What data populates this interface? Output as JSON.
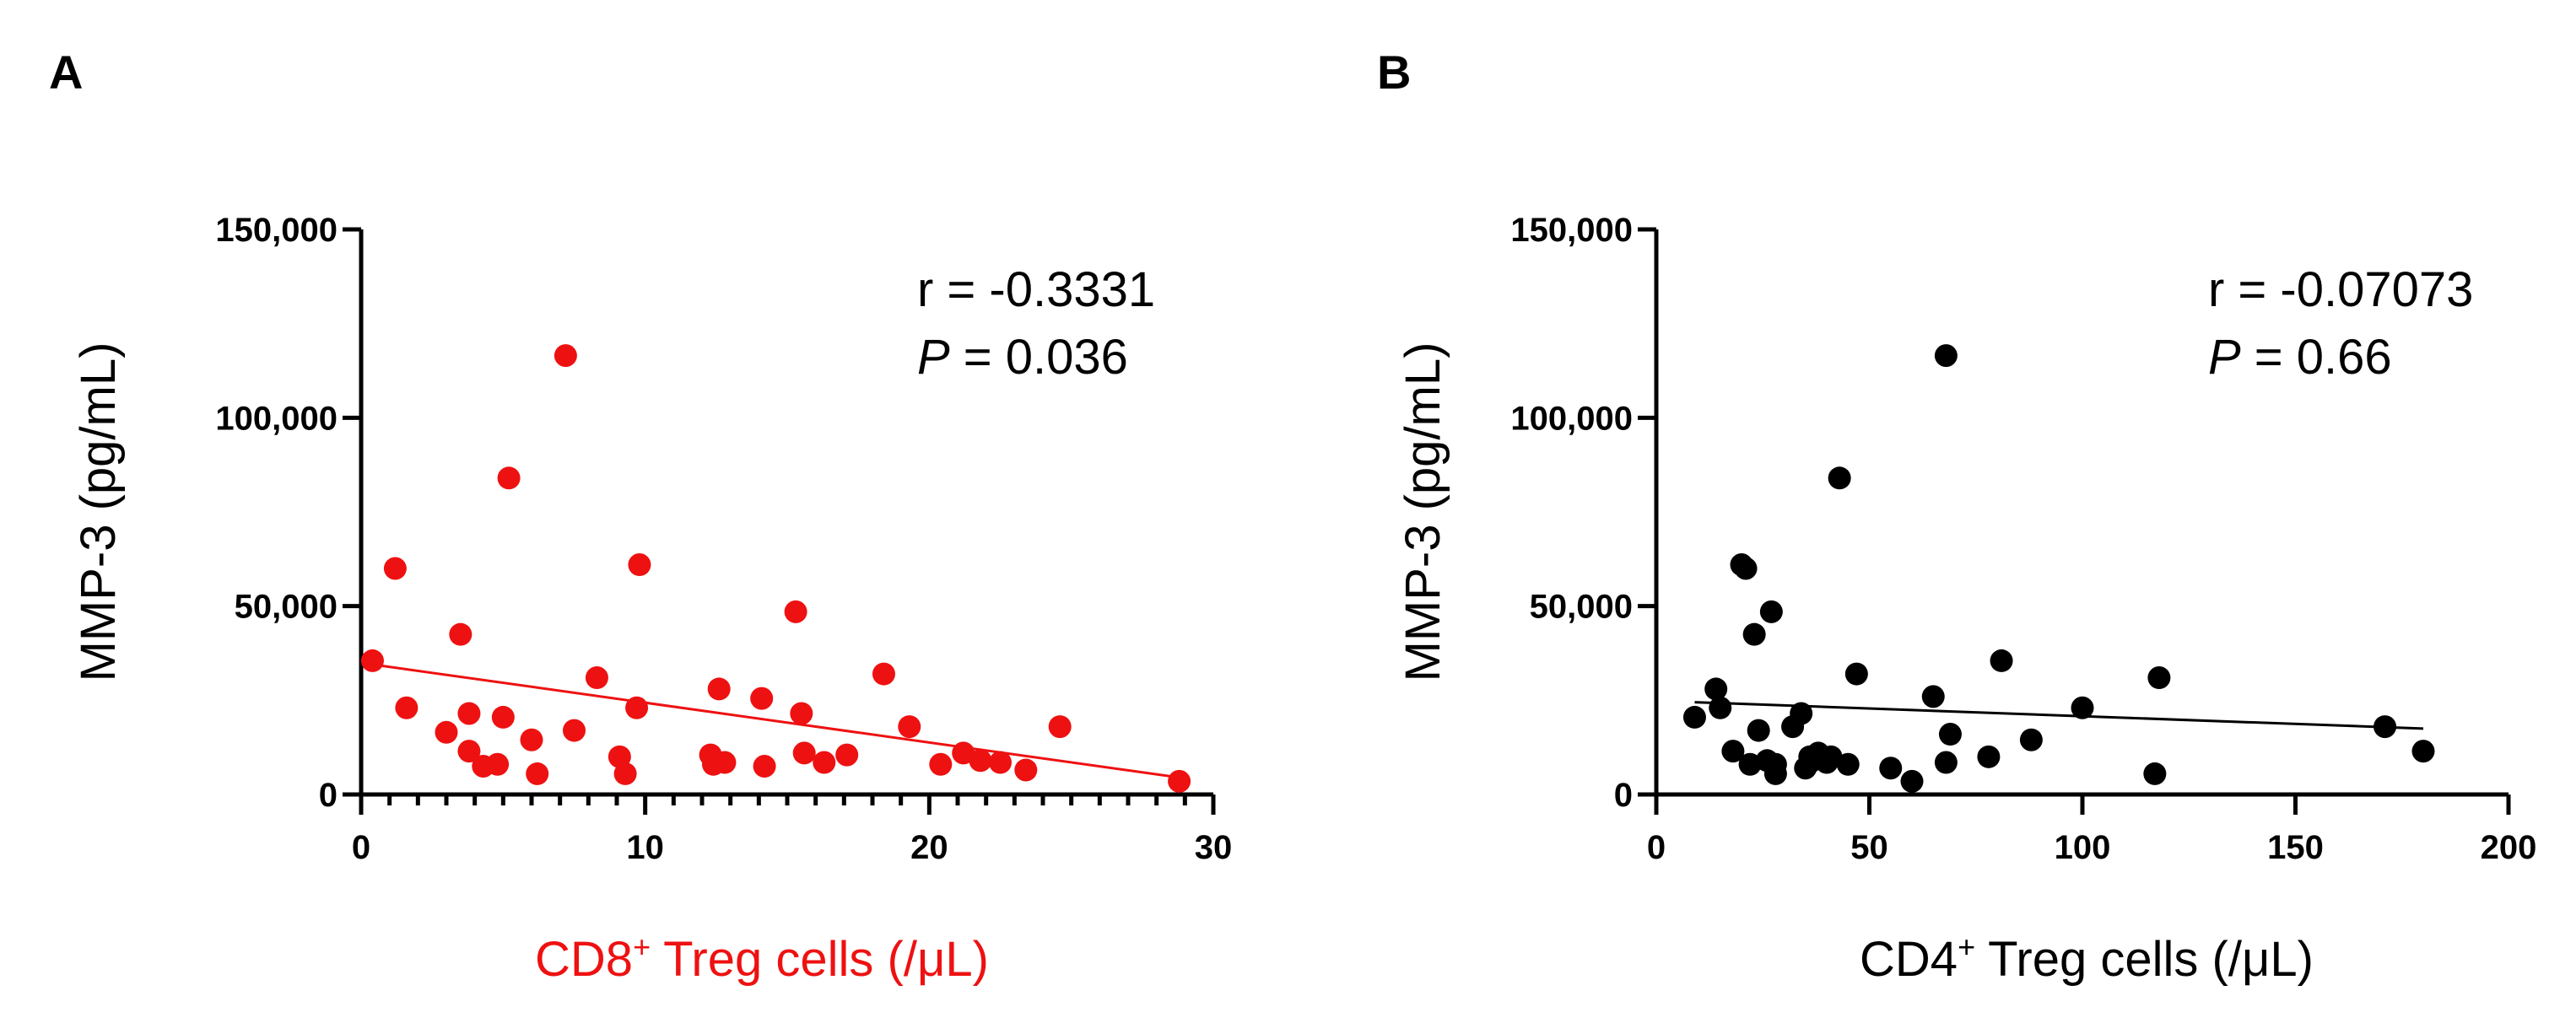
{
  "chart_data": [
    {
      "type": "scatter",
      "panel": "A",
      "xlabel": "CD8",
      "xlabel_sup": "+",
      "xlabel_rest": " Treg cells (/μL)",
      "ylabel": "MMP-3 (pg/mL)",
      "xlim": [
        0,
        30
      ],
      "ylim": [
        0,
        150000
      ],
      "x_ticks": [
        0,
        10,
        20,
        30
      ],
      "x_tick_labels": [
        "0",
        "10",
        "20",
        "30"
      ],
      "x_minor_step": 1,
      "y_ticks": [
        0,
        50000,
        100000,
        150000
      ],
      "y_tick_labels": [
        "0",
        "50,000",
        "100,000",
        "150,000"
      ],
      "color": "#ee1111",
      "xlabel_color": "#ee1111",
      "stat_r": "r = -0.3331",
      "stat_p_symbol": "P",
      "stat_p_value": " = 0.036",
      "points": [
        [
          0.4,
          35500
        ],
        [
          1.2,
          60000
        ],
        [
          1.6,
          23000
        ],
        [
          3.0,
          16500
        ],
        [
          3.5,
          42500
        ],
        [
          3.8,
          21500
        ],
        [
          3.8,
          11500
        ],
        [
          4.3,
          7500
        ],
        [
          4.8,
          8000
        ],
        [
          5.0,
          20500
        ],
        [
          5.2,
          84000
        ],
        [
          6.0,
          14500
        ],
        [
          6.2,
          5500
        ],
        [
          7.2,
          116500
        ],
        [
          7.5,
          17000
        ],
        [
          8.3,
          31000
        ],
        [
          9.1,
          10000
        ],
        [
          9.3,
          5500
        ],
        [
          9.7,
          23000
        ],
        [
          9.8,
          61000
        ],
        [
          12.3,
          10500
        ],
        [
          12.4,
          8000
        ],
        [
          12.6,
          28000
        ],
        [
          12.8,
          8500
        ],
        [
          14.1,
          25500
        ],
        [
          14.2,
          7500
        ],
        [
          15.3,
          48500
        ],
        [
          15.5,
          21500
        ],
        [
          15.6,
          11000
        ],
        [
          16.3,
          8500
        ],
        [
          17.1,
          10500
        ],
        [
          18.4,
          32000
        ],
        [
          19.3,
          18000
        ],
        [
          20.4,
          8000
        ],
        [
          21.2,
          11000
        ],
        [
          21.8,
          9000
        ],
        [
          22.5,
          8500
        ],
        [
          23.4,
          6500
        ],
        [
          24.6,
          18000
        ],
        [
          28.8,
          3500
        ]
      ],
      "fit": {
        "x1": 0.4,
        "y1": 34500,
        "x2": 28.8,
        "y2": 4500
      }
    },
    {
      "type": "scatter",
      "panel": "B",
      "xlabel": "CD4",
      "xlabel_sup": "+",
      "xlabel_rest": " Treg cells (/μL)",
      "ylabel": "MMP-3 (pg/mL)",
      "xlim": [
        0,
        200
      ],
      "ylim": [
        0,
        150000
      ],
      "x_ticks": [
        0,
        50,
        100,
        150,
        200
      ],
      "x_tick_labels": [
        "0",
        "50",
        "100",
        "150",
        "200"
      ],
      "x_minor_step": null,
      "y_ticks": [
        0,
        50000,
        100000,
        150000
      ],
      "y_tick_labels": [
        "0",
        "50,000",
        "100,000",
        "150,000"
      ],
      "color": "#000000",
      "xlabel_color": "#000000",
      "stat_r": "r = -0.07073",
      "stat_p_symbol": "P",
      "stat_p_value": " = 0.66",
      "points": [
        [
          9,
          20500
        ],
        [
          14,
          28000
        ],
        [
          15,
          23000
        ],
        [
          18,
          11500
        ],
        [
          20,
          61000
        ],
        [
          21,
          60000
        ],
        [
          22,
          8000
        ],
        [
          23,
          42500
        ],
        [
          24,
          17000
        ],
        [
          26,
          9000
        ],
        [
          27,
          48500
        ],
        [
          28,
          5500
        ],
        [
          28,
          8000
        ],
        [
          32,
          18000
        ],
        [
          34,
          21500
        ],
        [
          35,
          7000
        ],
        [
          36,
          8500
        ],
        [
          36,
          10000
        ],
        [
          38,
          11000
        ],
        [
          40,
          8500
        ],
        [
          41,
          10000
        ],
        [
          43,
          84000
        ],
        [
          45,
          8000
        ],
        [
          47,
          32000
        ],
        [
          55,
          7000
        ],
        [
          60,
          3500
        ],
        [
          65,
          26000
        ],
        [
          68,
          8500
        ],
        [
          68,
          116500
        ],
        [
          69,
          16000
        ],
        [
          78,
          10000
        ],
        [
          81,
          35500
        ],
        [
          88,
          14500
        ],
        [
          100,
          23000
        ],
        [
          117,
          5500
        ],
        [
          118,
          31000
        ],
        [
          171,
          18000
        ],
        [
          180,
          11500
        ]
      ],
      "fit": {
        "x1": 9,
        "y1": 24500,
        "x2": 180,
        "y2": 17500
      }
    }
  ]
}
